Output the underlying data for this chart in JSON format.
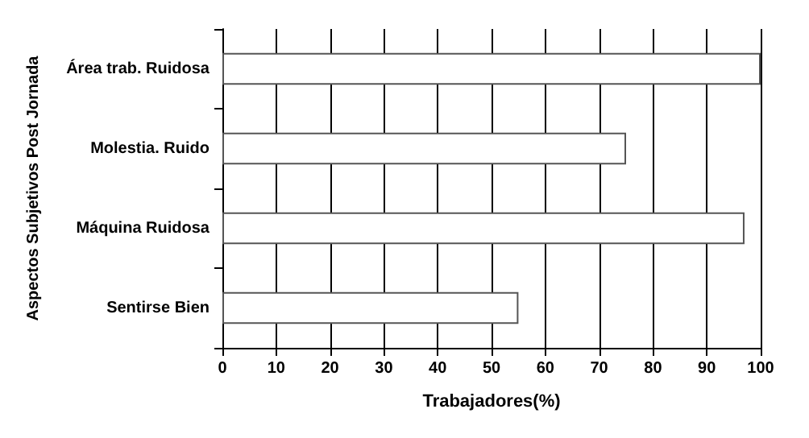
{
  "chart_data": {
    "type": "bar",
    "orientation": "horizontal",
    "categories": [
      "Área trab. Ruidosa",
      "Molestia. Ruido",
      "Máquina Ruidosa",
      "Sentirse Bien"
    ],
    "values": [
      100,
      75,
      97,
      55
    ],
    "color": "#ffffff",
    "xlabel": "Trabajadores(%)",
    "ylabel": "Aspectos Subjetivos Post Jornada",
    "xlim": [
      0,
      100
    ],
    "xticks": [
      0,
      10,
      20,
      30,
      40,
      50,
      60,
      70,
      80,
      90,
      100
    ],
    "grid": "x"
  }
}
